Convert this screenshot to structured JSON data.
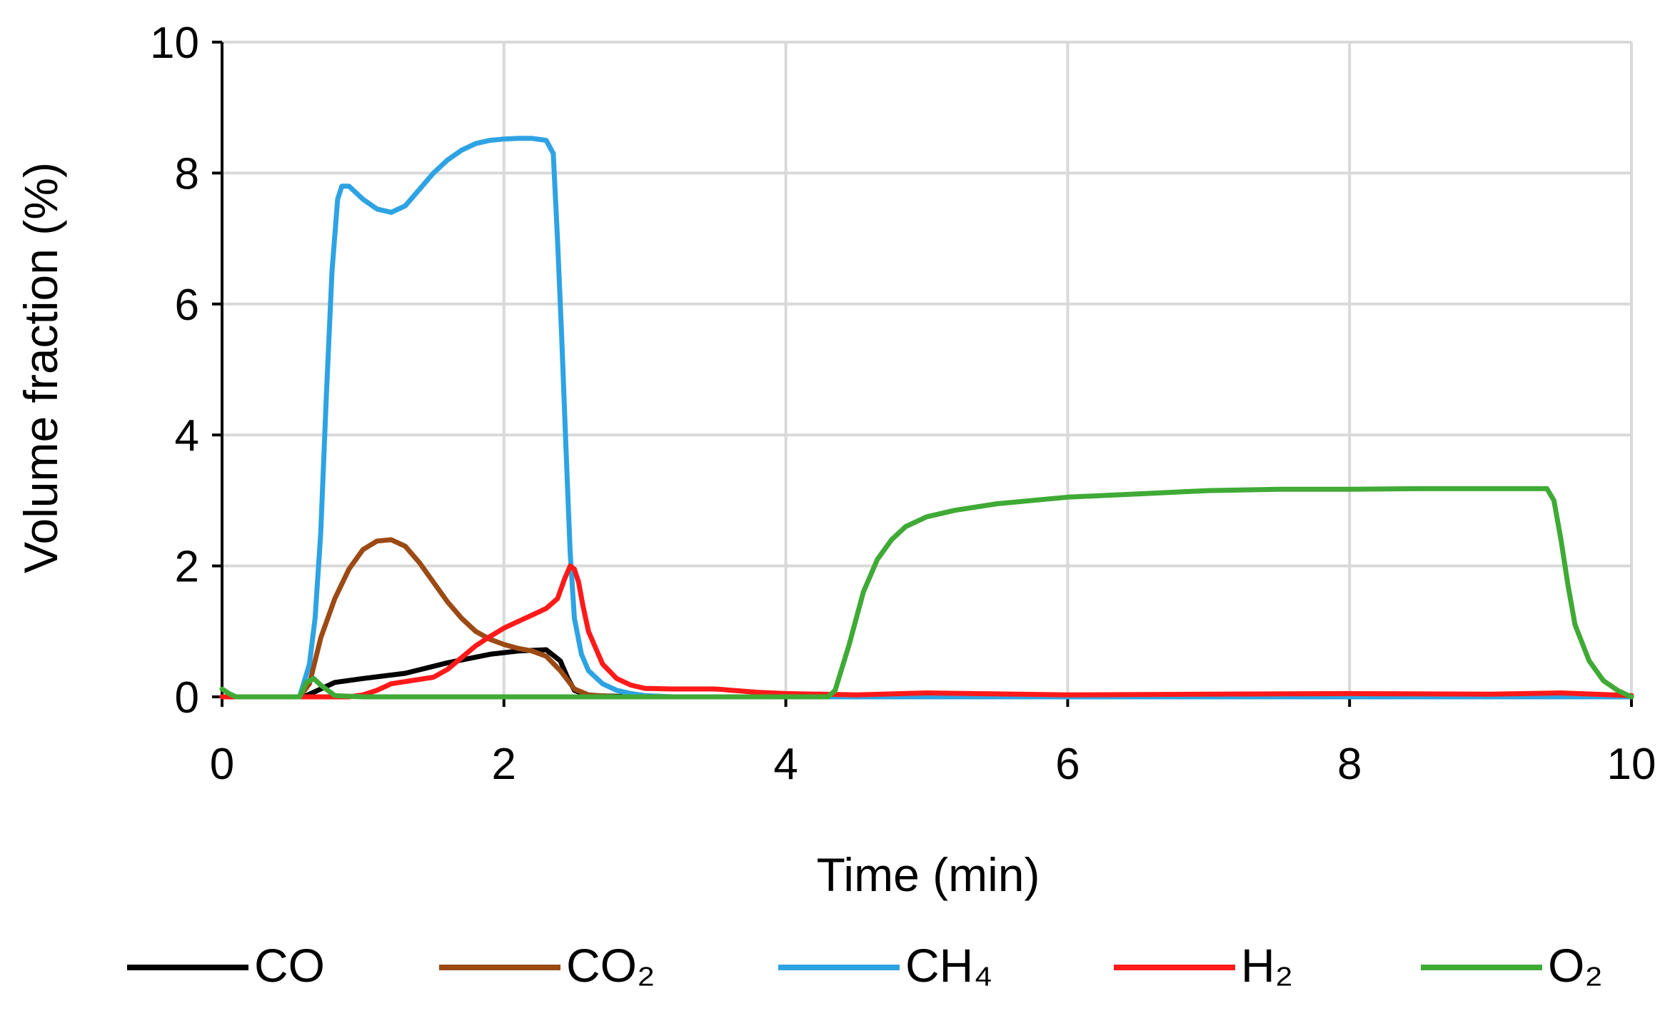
{
  "chart_data": {
    "type": "line",
    "title": "",
    "xlabel": "Time (min)",
    "ylabel": "Volume fraction (%)",
    "xlim": [
      0,
      10
    ],
    "ylim": [
      0,
      10
    ],
    "xticks": [
      "0",
      "2",
      "4",
      "6",
      "8",
      "10"
    ],
    "yticks": [
      "0",
      "2",
      "4",
      "6",
      "8",
      "10"
    ],
    "grid": true,
    "legend_position": "bottom",
    "series": [
      {
        "name": "CO",
        "color": "#000000",
        "x": [
          0,
          0.55,
          0.6,
          0.8,
          1.0,
          1.3,
          1.6,
          1.9,
          2.1,
          2.3,
          2.4,
          2.45,
          2.5,
          2.6,
          3.0,
          4.0,
          6.0,
          8.0,
          10.0
        ],
        "y": [
          0,
          0,
          0.02,
          0.22,
          0.28,
          0.36,
          0.52,
          0.65,
          0.7,
          0.72,
          0.55,
          0.3,
          0.1,
          0.02,
          0,
          0,
          0,
          0,
          0
        ]
      },
      {
        "name": "CO₂",
        "color": "#9C4A14",
        "x": [
          0,
          0.55,
          0.62,
          0.7,
          0.8,
          0.9,
          1.0,
          1.1,
          1.2,
          1.3,
          1.4,
          1.5,
          1.6,
          1.7,
          1.8,
          1.9,
          2.0,
          2.1,
          2.2,
          2.3,
          2.4,
          2.5,
          2.6,
          2.8,
          3.0,
          4.0,
          6.0,
          8.0,
          10.0
        ],
        "y": [
          0,
          0,
          0.2,
          0.9,
          1.5,
          1.95,
          2.25,
          2.38,
          2.4,
          2.3,
          2.05,
          1.75,
          1.45,
          1.2,
          1.0,
          0.88,
          0.8,
          0.74,
          0.7,
          0.62,
          0.4,
          0.12,
          0.03,
          0,
          0,
          0,
          0,
          0,
          0
        ]
      },
      {
        "name": "CH₄",
        "color": "#2EA3E3",
        "x": [
          0,
          0.55,
          0.62,
          0.66,
          0.7,
          0.74,
          0.78,
          0.82,
          0.85,
          0.9,
          1.0,
          1.1,
          1.2,
          1.3,
          1.4,
          1.5,
          1.6,
          1.7,
          1.8,
          1.9,
          2.0,
          2.1,
          2.2,
          2.3,
          2.35,
          2.38,
          2.41,
          2.44,
          2.47,
          2.5,
          2.55,
          2.6,
          2.7,
          2.8,
          2.9,
          3.0,
          3.2,
          4.0,
          6.0,
          8.0,
          10.0
        ],
        "y": [
          0,
          0,
          0.5,
          1.2,
          2.5,
          4.6,
          6.5,
          7.6,
          7.8,
          7.8,
          7.6,
          7.45,
          7.4,
          7.5,
          7.75,
          8.0,
          8.2,
          8.35,
          8.45,
          8.5,
          8.52,
          8.53,
          8.53,
          8.5,
          8.3,
          7.0,
          5.5,
          3.8,
          2.2,
          1.2,
          0.65,
          0.4,
          0.2,
          0.1,
          0.05,
          0.02,
          0,
          0,
          0,
          0,
          0
        ]
      },
      {
        "name": "H₂",
        "color": "#FF1A1A",
        "x": [
          0,
          0.9,
          1.0,
          1.1,
          1.2,
          1.35,
          1.5,
          1.6,
          1.7,
          1.8,
          1.9,
          2.0,
          2.1,
          2.2,
          2.3,
          2.38,
          2.43,
          2.47,
          2.5,
          2.53,
          2.56,
          2.6,
          2.7,
          2.8,
          2.9,
          3.0,
          3.2,
          3.5,
          3.8,
          4.0,
          4.5,
          5.0,
          6.0,
          7.0,
          8.0,
          9.0,
          9.5,
          10.0
        ],
        "y": [
          0,
          0,
          0.03,
          0.1,
          0.2,
          0.25,
          0.3,
          0.42,
          0.6,
          0.78,
          0.92,
          1.05,
          1.15,
          1.25,
          1.35,
          1.5,
          1.8,
          2.0,
          1.95,
          1.75,
          1.4,
          1.0,
          0.5,
          0.28,
          0.18,
          0.13,
          0.12,
          0.12,
          0.07,
          0.05,
          0.03,
          0.06,
          0.03,
          0.04,
          0.05,
          0.04,
          0.06,
          0.02
        ]
      },
      {
        "name": "O₂",
        "color": "#3FAA35",
        "x": [
          0,
          0.05,
          0.1,
          0.55,
          0.6,
          0.65,
          0.7,
          0.8,
          1.0,
          4.0,
          4.3,
          4.35,
          4.45,
          4.55,
          4.65,
          4.75,
          4.85,
          5.0,
          5.2,
          5.5,
          6.0,
          6.5,
          7.0,
          7.5,
          8.0,
          8.5,
          9.0,
          9.4,
          9.45,
          9.5,
          9.55,
          9.6,
          9.7,
          9.8,
          9.9,
          10.0
        ],
        "y": [
          0.12,
          0.05,
          0,
          0,
          0.22,
          0.28,
          0.18,
          0.02,
          0,
          0,
          0,
          0.1,
          0.8,
          1.6,
          2.1,
          2.4,
          2.6,
          2.75,
          2.85,
          2.95,
          3.05,
          3.1,
          3.15,
          3.17,
          3.17,
          3.18,
          3.18,
          3.18,
          3.0,
          2.4,
          1.7,
          1.1,
          0.55,
          0.25,
          0.1,
          0
        ]
      }
    ]
  }
}
